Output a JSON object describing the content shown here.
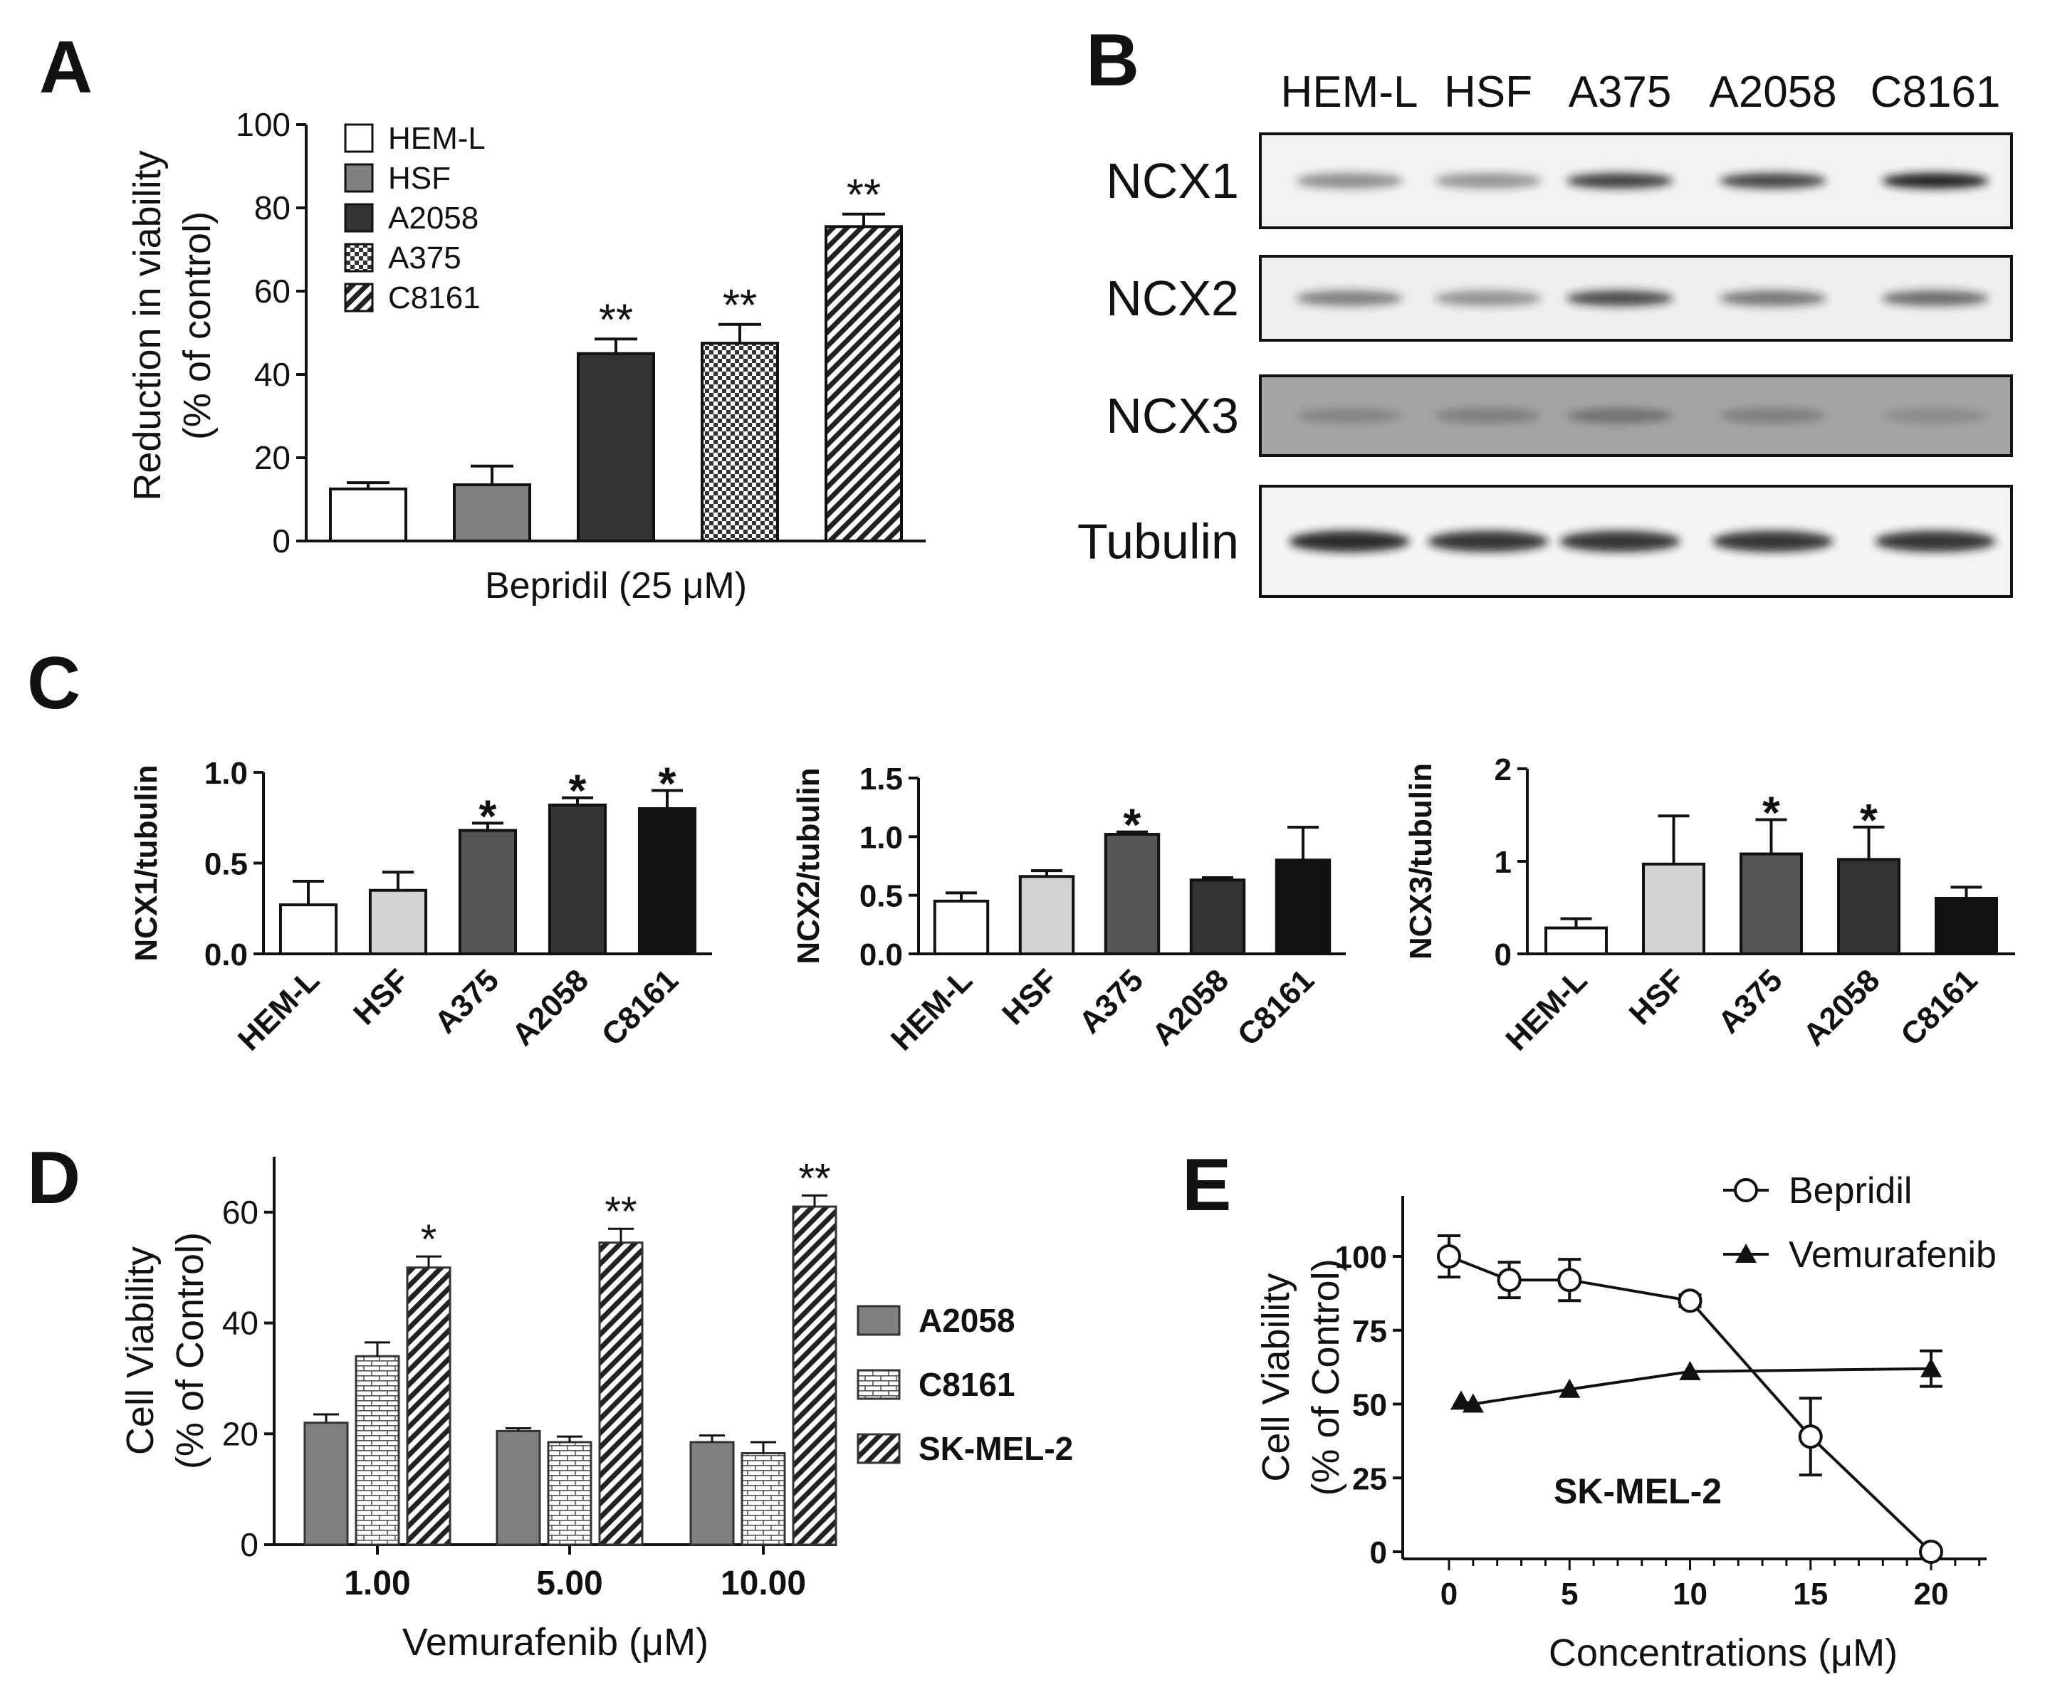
{
  "colors": {
    "gray_mid": "#808080",
    "gray_light": "#d3d3d3",
    "gray_dark": "#555555",
    "gray_darker": "#333333",
    "black": "#111111"
  },
  "chart_data": [
    {
      "panel": "A",
      "type": "bar",
      "xlabel": "Bepridil (25 μM)",
      "ylabel": "Reduction in viability",
      "ylabel2": "(% of control)",
      "ylim": [
        0,
        100
      ],
      "yticks": [
        "0",
        "20",
        "40",
        "60",
        "80",
        "100"
      ],
      "legend_position": "top-left",
      "categories": [
        "HEM-L",
        "HSF",
        "A2058",
        "A375",
        "C8161"
      ],
      "values": [
        12.5,
        13.5,
        45,
        47.5,
        75.5
      ],
      "errors": [
        1.5,
        4.5,
        3.5,
        4.5,
        3
      ],
      "significance": [
        "",
        "",
        "**",
        "**",
        "**"
      ],
      "fills": [
        "white",
        "gray",
        "dark",
        "dots",
        "diagonal"
      ]
    },
    {
      "panel": "B",
      "type": "western-blot",
      "lanes": [
        "HEM-L",
        "HSF",
        "A375",
        "A2058",
        "C8161"
      ],
      "rows": [
        {
          "label": "NCX1",
          "band_intensity": [
            0.45,
            0.42,
            0.8,
            0.78,
            0.95
          ]
        },
        {
          "label": "NCX2",
          "band_intensity": [
            0.5,
            0.42,
            0.75,
            0.55,
            0.6
          ]
        },
        {
          "label": "NCX3",
          "band_intensity": [
            0.25,
            0.3,
            0.4,
            0.3,
            0.2
          ]
        },
        {
          "label": "Tubulin",
          "band_intensity": [
            0.9,
            0.85,
            0.85,
            0.85,
            0.85
          ]
        }
      ]
    },
    {
      "panel": "C",
      "type": "bar",
      "ylabel": "NCX1/tubulin",
      "ylim": [
        0,
        1.0
      ],
      "yticks": [
        "0.0",
        "0.5",
        "1.0"
      ],
      "categories": [
        "HEM-L",
        "HSF",
        "A375",
        "A2058",
        "C8161"
      ],
      "values": [
        0.27,
        0.35,
        0.68,
        0.82,
        0.8
      ],
      "errors": [
        0.13,
        0.1,
        0.04,
        0.04,
        0.1
      ],
      "significance": [
        "",
        "",
        "*",
        "*",
        "*"
      ]
    },
    {
      "panel": "C",
      "type": "bar",
      "ylabel": "NCX2/tubulin",
      "ylim": [
        0,
        1.5
      ],
      "yticks": [
        "0.0",
        "0.5",
        "1.0",
        "1.5"
      ],
      "categories": [
        "HEM-L",
        "HSF",
        "A375",
        "A2058",
        "C8161"
      ],
      "values": [
        0.45,
        0.66,
        1.02,
        0.63,
        0.8
      ],
      "errors": [
        0.07,
        0.05,
        0.02,
        0.02,
        0.28
      ],
      "significance": [
        "",
        "",
        "*",
        "",
        ""
      ]
    },
    {
      "panel": "C",
      "type": "bar",
      "ylabel": "NCX3/tubulin",
      "ylim": [
        0,
        2
      ],
      "yticks": [
        "0",
        "1",
        "2"
      ],
      "categories": [
        "HEM-L",
        "HSF",
        "A375",
        "A2058",
        "C8161"
      ],
      "values": [
        0.28,
        0.97,
        1.08,
        1.02,
        0.6
      ],
      "errors": [
        0.1,
        0.52,
        0.37,
        0.35,
        0.12
      ],
      "significance": [
        "",
        "",
        "*",
        "*",
        ""
      ]
    },
    {
      "panel": "D",
      "type": "bar",
      "xlabel": "Vemurafenib (μM)",
      "ylabel": "Cell Viability",
      "ylabel2": "(% of Control)",
      "ylim": [
        0,
        70
      ],
      "yticks": [
        "0",
        "20",
        "40",
        "60"
      ],
      "categories": [
        "1.00",
        "5.00",
        "10.00"
      ],
      "legend_position": "right",
      "series": [
        {
          "name": "A2058",
          "values": [
            22,
            20.5,
            18.5
          ],
          "errors": [
            1.5,
            0.5,
            1.2
          ],
          "fill": "gray"
        },
        {
          "name": "C8161",
          "values": [
            34,
            18.5,
            16.5
          ],
          "errors": [
            2.5,
            1,
            2
          ],
          "fill": "bricks"
        },
        {
          "name": "SK-MEL-2",
          "values": [
            50,
            54.5,
            61
          ],
          "errors": [
            2,
            2.5,
            2
          ],
          "fill": "diagonal"
        }
      ],
      "significance": [
        [
          "",
          "",
          "*"
        ],
        [
          "",
          "",
          "**"
        ],
        [
          "",
          "",
          "**"
        ]
      ]
    },
    {
      "panel": "E",
      "type": "line",
      "xlabel": "Concentrations (μM)",
      "ylabel": "Cell Viability",
      "ylabel2": "(% of Control)",
      "xlim": [
        0,
        22
      ],
      "ylim": [
        0,
        110
      ],
      "xticks": [
        "0",
        "5",
        "10",
        "15",
        "20"
      ],
      "yticks": [
        "0",
        "25",
        "50",
        "75",
        "100"
      ],
      "legend_position": "top-right",
      "annotation": "SK-MEL-2",
      "series": [
        {
          "name": "Bepridil",
          "marker": "open-circle",
          "x": [
            0,
            2.5,
            5,
            10,
            15,
            20
          ],
          "y": [
            100,
            92,
            92,
            85,
            39,
            0
          ],
          "errors": [
            7,
            6,
            7,
            2,
            13,
            1
          ]
        },
        {
          "name": "Vemurafenib",
          "marker": "filled-triangle",
          "x": [
            0.5,
            1,
            5,
            10,
            20
          ],
          "y": [
            51,
            50,
            55,
            61,
            62
          ],
          "errors": [
            1,
            1,
            1,
            1,
            6
          ]
        }
      ]
    }
  ]
}
